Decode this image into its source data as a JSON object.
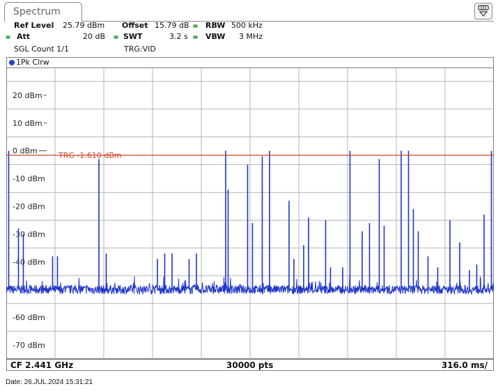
{
  "tab": {
    "label": "Spectrum"
  },
  "settings": {
    "ref_level_label": "Ref Level",
    "ref_level_value": "25.79 dBm",
    "offset_label": "Offset",
    "offset_value": "15.79 dB",
    "rbw_label": "RBW",
    "rbw_value": "500 kHz",
    "att_label": "Att",
    "att_value": "20 dB",
    "swt_label": "SWT",
    "swt_value": "3.2 s",
    "vbw_label": "VBW",
    "vbw_value": "3 MHz",
    "sgl_count": "SGL Count 1/1",
    "trg": "TRG:VID"
  },
  "trace": {
    "label": "1Pk Clrw"
  },
  "footer": {
    "cf": "CF 2.441 GHz",
    "pts": "30000 pts",
    "span": "316.0 ms/"
  },
  "date": "Date: 26.JUL.2024  15:31:21",
  "colors": {
    "trace": "#1f35c8",
    "trigger_line": "#d2452b",
    "status_dot": "#5fb06a"
  },
  "icons": {
    "corner_button": "display-menu-icon"
  },
  "chart_data": {
    "type": "line",
    "title": "",
    "xlabel": "",
    "ylabel": "",
    "ylim": [
      -75,
      30
    ],
    "xlim": [
      0,
      10
    ],
    "x_unit_per_div": "316.0 ms",
    "yticks": [
      20,
      10,
      0,
      -10,
      -20,
      -30,
      -40,
      -60,
      -70
    ],
    "ytick_labels": [
      "20 dBm",
      "10 dBm",
      "0 dBm",
      "-10 dBm",
      "-20 dBm",
      "-30 dBm",
      "-40 dBm",
      "-60 dBm",
      "-70 dBm"
    ],
    "grid": true,
    "noise_floor_dbm": -50,
    "trigger": {
      "label": "TRG  -1.610 dBm",
      "value": -1.61
    },
    "series": [
      {
        "peaks": [
          {
            "x": 0.05,
            "y": 0
          },
          {
            "x": 0.25,
            "y": -28
          },
          {
            "x": 0.35,
            "y": -30
          },
          {
            "x": 0.95,
            "y": -38
          },
          {
            "x": 1.05,
            "y": -38
          },
          {
            "x": 1.9,
            "y": -3
          },
          {
            "x": 2.05,
            "y": -37
          },
          {
            "x": 3.1,
            "y": -39
          },
          {
            "x": 3.25,
            "y": -37
          },
          {
            "x": 3.4,
            "y": -37
          },
          {
            "x": 3.75,
            "y": -39
          },
          {
            "x": 3.9,
            "y": -37
          },
          {
            "x": 4.5,
            "y": 0
          },
          {
            "x": 4.55,
            "y": -14
          },
          {
            "x": 4.95,
            "y": -5
          },
          {
            "x": 5.05,
            "y": -26
          },
          {
            "x": 5.25,
            "y": -2
          },
          {
            "x": 5.4,
            "y": 0
          },
          {
            "x": 5.8,
            "y": -18
          },
          {
            "x": 5.9,
            "y": -39
          },
          {
            "x": 6.1,
            "y": -34
          },
          {
            "x": 6.2,
            "y": -24
          },
          {
            "x": 6.55,
            "y": -25
          },
          {
            "x": 6.65,
            "y": -42
          },
          {
            "x": 6.9,
            "y": -42
          },
          {
            "x": 7.05,
            "y": 0
          },
          {
            "x": 7.3,
            "y": -29
          },
          {
            "x": 7.45,
            "y": -26
          },
          {
            "x": 7.65,
            "y": -3
          },
          {
            "x": 7.75,
            "y": -27
          },
          {
            "x": 8.1,
            "y": 0
          },
          {
            "x": 8.25,
            "y": 0
          },
          {
            "x": 8.35,
            "y": -21
          },
          {
            "x": 8.45,
            "y": -29
          },
          {
            "x": 8.65,
            "y": -38
          },
          {
            "x": 8.85,
            "y": -42
          },
          {
            "x": 9.1,
            "y": -25
          },
          {
            "x": 9.3,
            "y": -33
          },
          {
            "x": 9.5,
            "y": -43
          },
          {
            "x": 9.65,
            "y": -41
          },
          {
            "x": 9.8,
            "y": -23
          },
          {
            "x": 9.95,
            "y": 0
          }
        ]
      }
    ]
  }
}
